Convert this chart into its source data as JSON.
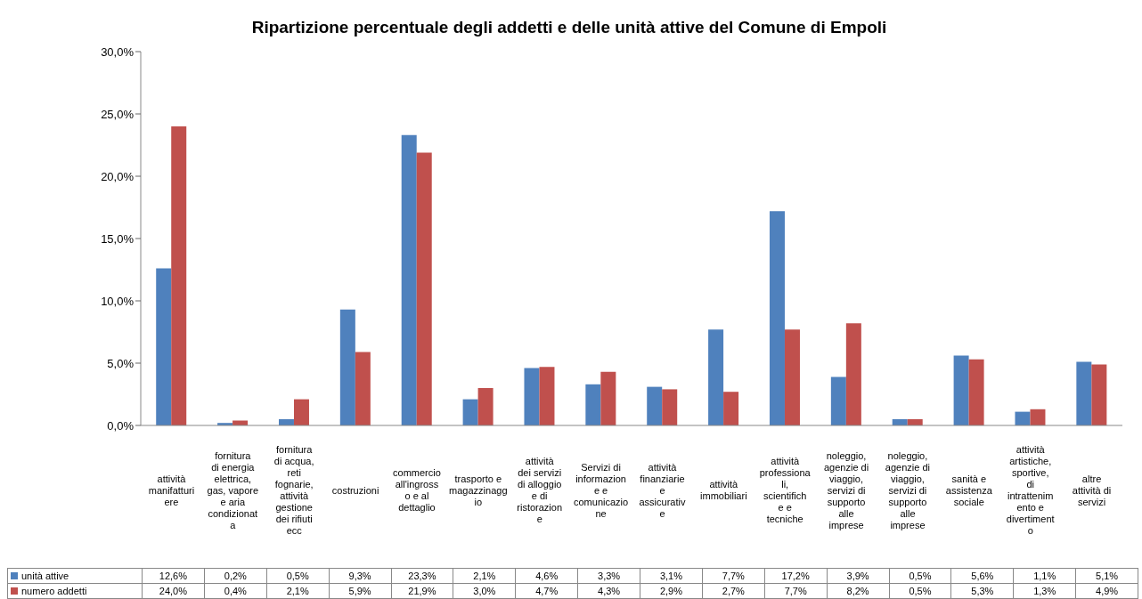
{
  "chart_data": {
    "type": "bar",
    "title": "Ripartizione percentuale degli addetti e delle unità attive del Comune di Empoli",
    "categories": [
      "attività manifatturiere",
      "fornitura di energia elettrica, gas, vapore e aria condizionata",
      "fornitura di acqua, reti fognarie, attività gestione dei rifiuti ecc",
      "costruzioni",
      "commercio all'ingrosso e al dettaglio",
      "trasporto e magazzinaggio",
      "attività dei servizi di alloggio e di ristorazione",
      "Servizi di informazione e comunicazione",
      "attività finanziarie e assicurative",
      "attività immobiliari",
      "attività professionali, scientifiche e tecniche",
      "noleggio, agenzie di viaggio, servizi di supporto alle imprese",
      "noleggio, agenzie di viaggio, servizi di supporto alle imprese",
      "sanità e assistenza sociale",
      "attività artistiche, sportive, di intrattenimento e divertimento",
      "altre attività di servizi"
    ],
    "series": [
      {
        "name": "unità attive",
        "color": "#4f81bd",
        "values": [
          12.6,
          0.2,
          0.5,
          9.3,
          23.3,
          2.1,
          4.6,
          3.3,
          3.1,
          7.7,
          17.2,
          3.9,
          0.5,
          5.6,
          1.1,
          5.1
        ],
        "value_labels": [
          "12,6%",
          "0,2%",
          "0,5%",
          "9,3%",
          "23,3%",
          "2,1%",
          "4,6%",
          "3,3%",
          "3,1%",
          "7,7%",
          "17,2%",
          "3,9%",
          "0,5%",
          "5,6%",
          "1,1%",
          "5,1%"
        ]
      },
      {
        "name": "numero addetti",
        "color": "#c0504d",
        "values": [
          24.0,
          0.4,
          2.1,
          5.9,
          21.9,
          3.0,
          4.7,
          4.3,
          2.9,
          2.7,
          7.7,
          8.2,
          0.5,
          5.3,
          1.3,
          4.9
        ],
        "value_labels": [
          "24,0%",
          "0,4%",
          "2,1%",
          "5,9%",
          "21,9%",
          "3,0%",
          "4,7%",
          "4,3%",
          "2,9%",
          "2,7%",
          "7,7%",
          "8,2%",
          "0,5%",
          "5,3%",
          "1,3%",
          "4,9%"
        ]
      }
    ],
    "ylim": [
      0,
      30
    ],
    "yticks": [
      {
        "value": 0,
        "label": "0,0%"
      },
      {
        "value": 5,
        "label": "5,0%"
      },
      {
        "value": 10,
        "label": "10,0%"
      },
      {
        "value": 15,
        "label": "15,0%"
      },
      {
        "value": 20,
        "label": "20,0%"
      },
      {
        "value": 25,
        "label": "25,0%"
      },
      {
        "value": 30,
        "label": "30,0%"
      }
    ],
    "legend": "bottom left"
  }
}
